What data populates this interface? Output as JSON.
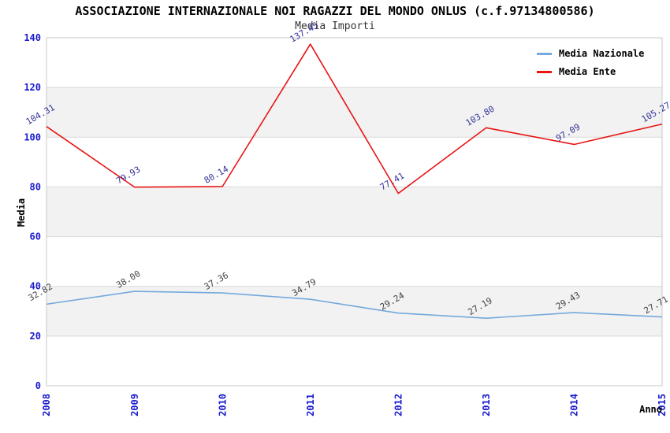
{
  "title": "ASSOCIAZIONE INTERNAZIONALE NOI RAGAZZI DEL MONDO ONLUS (c.f.97134800586)",
  "subtitle": "Media Importi",
  "ylabel": "Media",
  "xlabel": "Anno",
  "legend": [
    {
      "label": "Media Nazionale",
      "color": "#74a9dc"
    },
    {
      "label": "Media Ente",
      "color": "#e81414"
    }
  ],
  "colors": {
    "tick_label": "#1a1acd",
    "gridline": "#d9d9d9",
    "frame": "#c9c9c9",
    "band_gray": "#f2f2f2",
    "band_white": "#ffffff",
    "title": "#000000",
    "subtitle": "#333333",
    "nazionale_line": "#74a9dc",
    "ente_line": "#e81414",
    "nazionale_value_label": "#444444",
    "ente_value_label": "#333399"
  },
  "chart_data": {
    "type": "line",
    "title": "ASSOCIAZIONE INTERNAZIONALE NOI RAGAZZI DEL MONDO ONLUS (c.f.97134800586)",
    "subtitle": "Media Importi",
    "xlabel": "Anno",
    "ylabel": "Media",
    "categories": [
      "2008",
      "2009",
      "2010",
      "2011",
      "2012",
      "2013",
      "2014",
      "2015"
    ],
    "series": [
      {
        "name": "Media Nazionale",
        "color": "#74a9dc",
        "label_color": "#444444",
        "values": [
          32.82,
          38.0,
          37.36,
          34.79,
          29.24,
          27.19,
          29.43,
          27.71
        ]
      },
      {
        "name": "Media Ente",
        "color": "#e81414",
        "label_color": "#333399",
        "values": [
          104.31,
          79.93,
          80.14,
          137.45,
          77.41,
          103.8,
          97.09,
          105.27
        ]
      }
    ],
    "ylim": [
      0,
      140
    ],
    "ytick_step": 20,
    "grid": "horizontal-bands-alternating",
    "legend_position": "top-right-inside",
    "value_labels": "shown-rotated"
  }
}
